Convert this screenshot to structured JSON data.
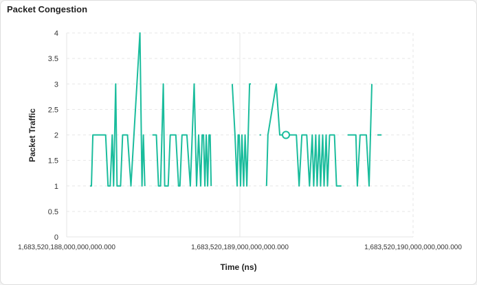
{
  "panel": {
    "title": "Packet Congestion"
  },
  "colors": {
    "series": "#1abc9c",
    "grid": "#e6e6e6",
    "axis_text": "#333333"
  },
  "chart_data": {
    "type": "line",
    "title": "",
    "xlabel": "Time (ns)",
    "ylabel": "Packet Traffic",
    "x_tick_labels": [
      "1,683,520,188,000,000,000.000",
      "1,683,520,189,000,000,000.000",
      "1,683,520,190,000,000,000.000"
    ],
    "y_tick_labels": [
      "0",
      "0.5",
      "1",
      "1.5",
      "2",
      "2.5",
      "3",
      "3.5",
      "4"
    ],
    "ylim": [
      0,
      4
    ],
    "xlim": [
      1.683520188e+18,
      1.68352019e+18
    ],
    "grid": true,
    "legend": "none",
    "series": [
      {
        "name": "",
        "segments": [
          [
            [
              1.683520188135e+18,
              1
            ],
            [
              1.683520188143e+18,
              1
            ],
            [
              1.683520188151e+18,
              2
            ],
            [
              1.683520188225e+18,
              2
            ],
            [
              1.683520188239e+18,
              1
            ],
            [
              1.683520188251e+18,
              1
            ],
            [
              1.683520188263e+18,
              2
            ],
            [
              1.683520188271e+18,
              1
            ],
            [
              1.683520188283e+18,
              3
            ],
            [
              1.683520188291e+18,
              1
            ],
            [
              1.683520188311e+18,
              1
            ],
            [
              1.683520188323e+18,
              2
            ],
            [
              1.683520188351e+18,
              2
            ],
            [
              1.683520188371e+18,
              1
            ],
            [
              1.683520188423e+18,
              4
            ],
            [
              1.683520188435e+18,
              1
            ],
            [
              1.683520188443e+18,
              2
            ],
            [
              1.683520188451e+18,
              1
            ]
          ],
          [
            [
              1.683520188495e+18,
              2
            ],
            [
              1.683520188518e+18,
              2
            ],
            [
              1.68352018853e+18,
              1
            ],
            [
              1.683520188542e+18,
              1
            ],
            [
              1.683520188558e+18,
              3
            ],
            [
              1.683520188566e+18,
              1
            ],
            [
              1.683520188586e+18,
              1
            ],
            [
              1.683520188598e+18,
              2
            ],
            [
              1.68352018863e+18,
              2
            ],
            [
              1.683520188646e+18,
              1
            ],
            [
              1.683520188654e+18,
              1
            ],
            [
              1.683520188666e+18,
              2
            ],
            [
              1.683520188694e+18,
              2
            ],
            [
              1.683520188714e+18,
              1
            ],
            [
              1.683520188736e+18,
              3
            ],
            [
              1.68352018875e+18,
              1
            ],
            [
              1.683520188762e+18,
              2
            ],
            [
              1.683520188774e+18,
              1
            ],
            [
              1.683520188782e+18,
              2
            ],
            [
              1.68352018879e+18,
              2
            ],
            [
              1.683520188798e+18,
              1
            ],
            [
              1.683520188806e+18,
              2
            ],
            [
              1.683520188814e+18,
              1
            ],
            [
              1.683520188822e+18,
              2
            ],
            [
              1.683520188828e+18,
              2
            ],
            [
              1.683520188834e+18,
              1
            ]
          ],
          [
            [
              1.683520188956e+18,
              3
            ],
            [
              1.683520188972e+18,
              2
            ],
            [
              1.683520188984e+18,
              1
            ],
            [
              1.68352018899e+18,
              2
            ],
            [
              1.683520188996e+18,
              2
            ],
            [
              1.683520189004e+18,
              1
            ],
            [
              1.683520189012e+18,
              2
            ],
            [
              1.683520189022e+18,
              1
            ],
            [
              1.68352018903e+18,
              2
            ],
            [
              1.68352018904e+18,
              1
            ],
            [
              1.683520189048e+18,
              2
            ],
            [
              1.683520189056e+18,
              3
            ],
            [
              1.683520189064e+18,
              3
            ]
          ],
          [
            [
              1.683520189114e+18,
              2
            ],
            [
              1.683520189122e+18,
              2
            ]
          ],
          [
            [
              1.683520189154e+18,
              1
            ],
            [
              1.683520189162e+18,
              2
            ],
            [
              1.68352018921e+18,
              3
            ],
            [
              1.68352018923e+18,
              2
            ],
            [
              1.683520189266e+18,
              2
            ],
            [
              1.683520189294e+18,
              2
            ],
            [
              1.683520189306e+18,
              2
            ],
            [
              1.683520189326e+18,
              2
            ],
            [
              1.683520189342e+18,
              1
            ],
            [
              1.683520189358e+18,
              2
            ],
            [
              1.683520189386e+18,
              2
            ],
            [
              1.683520189402e+18,
              1
            ],
            [
              1.683520189418e+18,
              2
            ],
            [
              1.683520189426e+18,
              1
            ],
            [
              1.683520189438e+18,
              2
            ],
            [
              1.683520189446e+18,
              1
            ],
            [
              1.683520189458e+18,
              2
            ],
            [
              1.683520189466e+18,
              1
            ],
            [
              1.683520189478e+18,
              2
            ],
            [
              1.683520189486e+18,
              1
            ],
            [
              1.683520189498e+18,
              2
            ],
            [
              1.683520189506e+18,
              1
            ],
            [
              1.683520189518e+18,
              2
            ],
            [
              1.683520189546e+18,
              2
            ],
            [
              1.683520189558e+18,
              1
            ],
            [
              1.683520189586e+18,
              1
            ]
          ],
          [
            [
              1.683520189622e+18,
              2
            ],
            [
              1.68352018967e+18,
              2
            ],
            [
              1.683520189678e+18,
              1
            ],
            [
              1.683520189694e+18,
              2
            ],
            [
              1.68352018973e+18,
              2
            ],
            [
              1.683520189746e+18,
              1
            ],
            [
              1.683520189754e+18,
              2
            ],
            [
              1.683520189762e+18,
              3
            ]
          ],
          [
            [
              1.683520189794e+18,
              2
            ],
            [
              1.683520189818e+18,
              2
            ]
          ]
        ]
      }
    ],
    "hover_point": [
      1.683520189266e+18,
      2
    ]
  }
}
